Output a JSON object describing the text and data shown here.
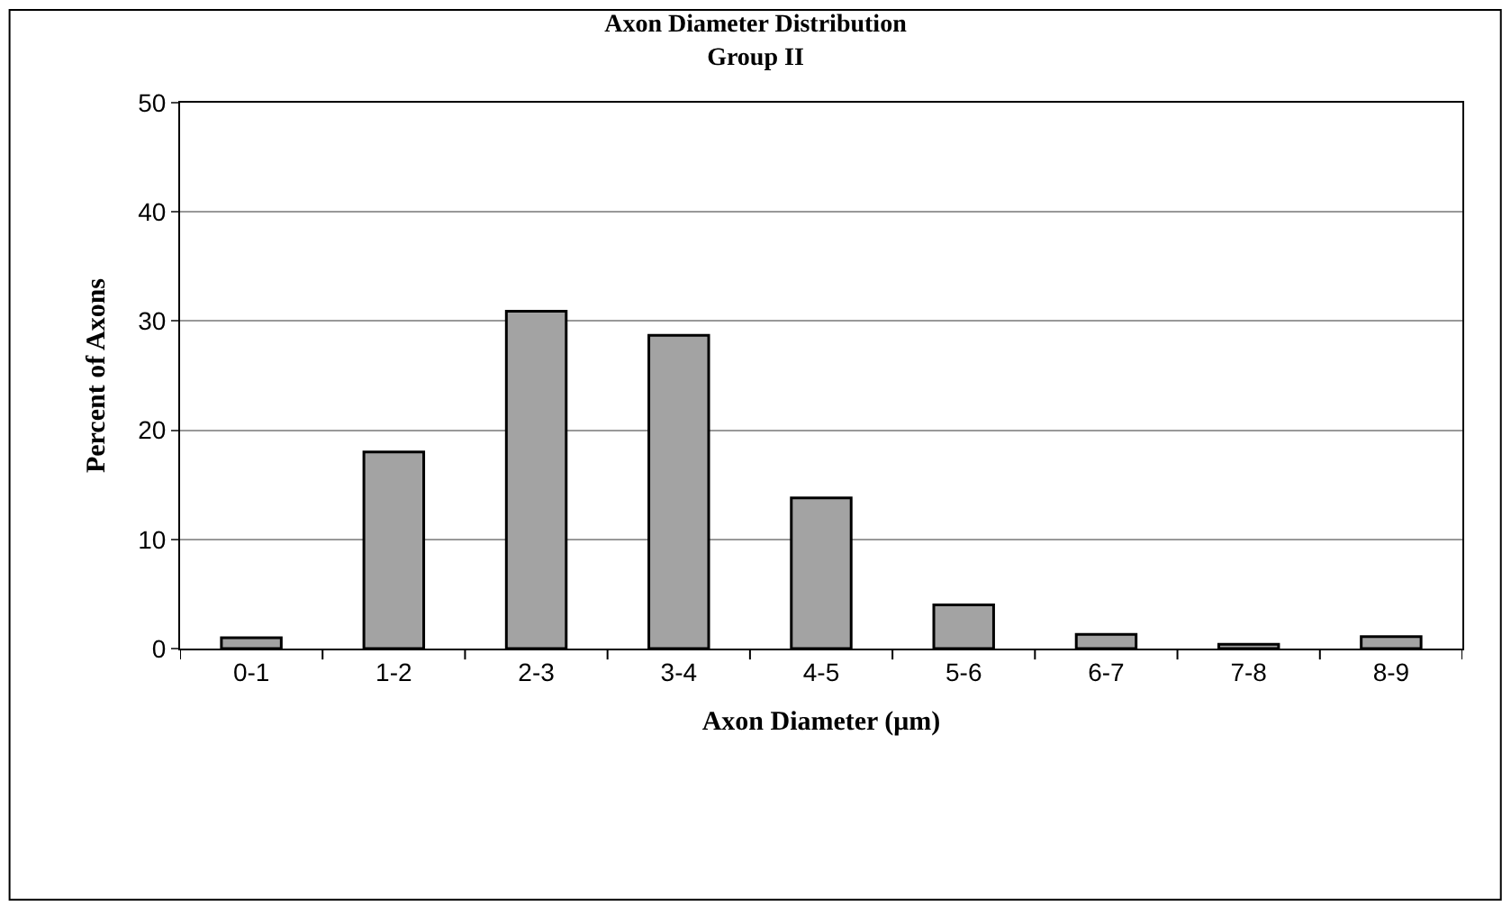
{
  "chart_data": {
    "type": "bar",
    "title": "Axon Diameter Distribution",
    "subtitle": "Group II",
    "xlabel": "Axon Diameter (μm)",
    "ylabel": "Percent of Axons",
    "categories": [
      "0-1",
      "1-2",
      "2-3",
      "3-4",
      "4-5",
      "5-6",
      "6-7",
      "7-8",
      "8-9"
    ],
    "values": [
      1.0,
      18.0,
      30.9,
      28.7,
      13.8,
      4.0,
      1.3,
      0.4,
      1.1
    ],
    "color": "#a3a3a3",
    "ylim": [
      0,
      50
    ],
    "yticks": [
      0,
      10,
      20,
      30,
      40,
      50
    ],
    "grid": "y",
    "legend": false
  }
}
